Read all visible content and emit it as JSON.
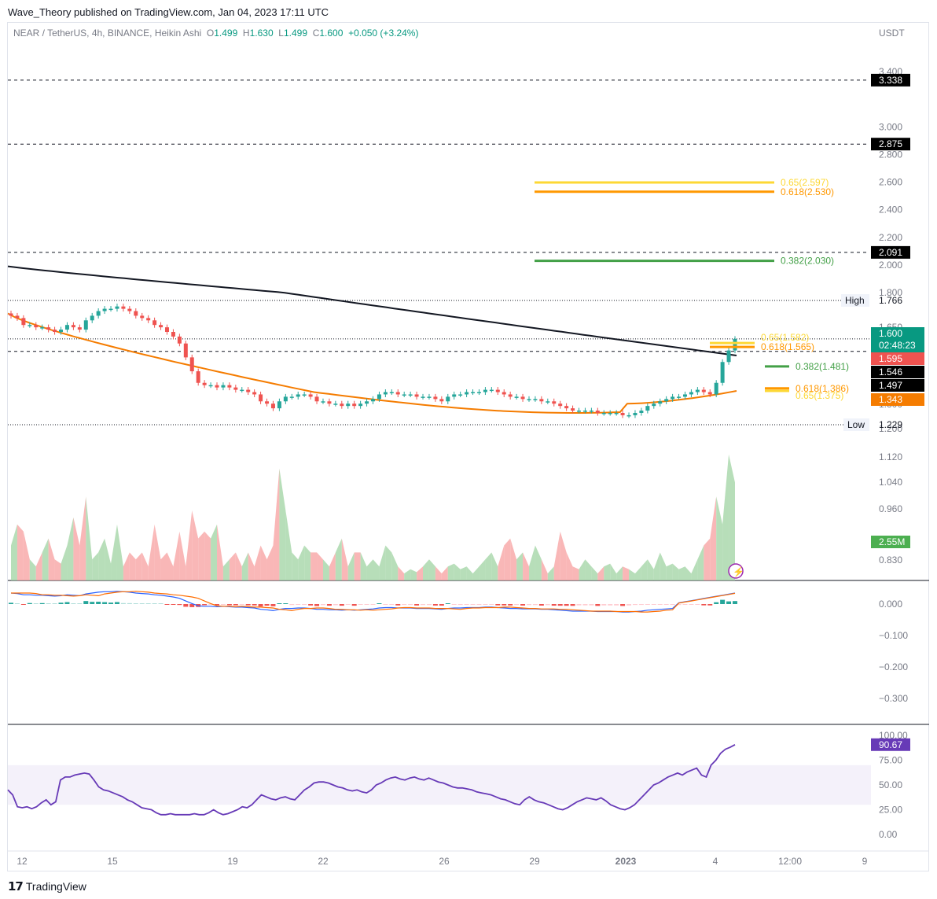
{
  "header": {
    "published": "Wave_Theory published on TradingView.com, Jan 04, 2023 17:11 UTC",
    "symbol": "NEAR / TetherUS, 4h, BINANCE, Heikin Ashi",
    "o_label": "O",
    "o_val": "1.499",
    "h_label": "H",
    "h_val": "1.630",
    "l_label": "L",
    "l_val": "1.499",
    "c_label": "C",
    "c_val": "1.600",
    "change": "+0.050 (+3.24%)",
    "currency": "USDT"
  },
  "footer": {
    "brand": "TradingView"
  },
  "colors": {
    "up": "#26a69a",
    "down": "#ef5350",
    "ema_long": "#131722",
    "ema_short": "#f57c00",
    "fib_yellow": "#fdd835",
    "fib_orange": "#ff9800",
    "fib_green": "#43a047",
    "macd": "#2962ff",
    "signal": "#ff6d00",
    "rsi": "#673ab7"
  },
  "chart_data": [
    {
      "type": "candlestick",
      "title": "NEAR / TetherUS, 4h, BINANCE, Heikin Ashi",
      "yaxis_ticks": [
        "3.400",
        "3.000",
        "2.800",
        "2.600",
        "2.400",
        "2.200",
        "2.000",
        "1.800",
        "1.650",
        "1.300",
        "1.200",
        "1.120",
        "1.040",
        "0.960",
        "0.830"
      ],
      "x_ticks": [
        "12",
        "15",
        "19",
        "22",
        "26",
        "29",
        "2023",
        "4",
        "12:00",
        "9"
      ],
      "price_levels": [
        {
          "label": "3.338",
          "value": 3.338,
          "style": "dashed"
        },
        {
          "label": "2.875",
          "value": 2.875,
          "style": "dashed"
        },
        {
          "label": "2.091",
          "value": 2.091,
          "style": "dashed"
        },
        {
          "label": "1.546",
          "value": 1.546,
          "style": "dashed"
        }
      ],
      "high": {
        "label": "High",
        "value": "1.766"
      },
      "low": {
        "label": "Low",
        "value": "1.229"
      },
      "price_tags": [
        {
          "value": "1.600",
          "sub": "02:48:23",
          "color": "#089981"
        },
        {
          "value": "1.595",
          "color": "#ef5350"
        },
        {
          "value": "1.546",
          "color": "#000000"
        },
        {
          "value": "1.497",
          "color": "#000000"
        },
        {
          "value": "1.343",
          "color": "#f57c00"
        }
      ],
      "fib_levels": [
        {
          "label": "0.65(2.597)",
          "value": 2.597,
          "color": "#fdd835"
        },
        {
          "label": "0.618(2.530)",
          "value": 2.53,
          "color": "#ff9800"
        },
        {
          "label": "0.382(2.030)",
          "value": 2.03,
          "color": "#43a047"
        },
        {
          "label": "0.65(1.582)",
          "value": 1.582,
          "color": "#fdd835"
        },
        {
          "label": "0.618(1.565)",
          "value": 1.565,
          "color": "#ff9800"
        },
        {
          "label": "0.382(1.481)",
          "value": 1.481,
          "color": "#43a047"
        },
        {
          "label": "0.618(1.386)",
          "value": 1.386,
          "color": "#ff9800"
        },
        {
          "label": "0.65(1.375)",
          "value": 1.375,
          "color": "#fdd835"
        }
      ],
      "close_series": [
        1.7,
        1.69,
        1.66,
        1.66,
        1.65,
        1.65,
        1.64,
        1.63,
        1.64,
        1.66,
        1.65,
        1.64,
        1.68,
        1.7,
        1.72,
        1.73,
        1.73,
        1.74,
        1.73,
        1.72,
        1.7,
        1.69,
        1.68,
        1.66,
        1.65,
        1.63,
        1.61,
        1.58,
        1.52,
        1.46,
        1.41,
        1.4,
        1.4,
        1.39,
        1.4,
        1.39,
        1.38,
        1.38,
        1.37,
        1.36,
        1.33,
        1.32,
        1.3,
        1.33,
        1.35,
        1.35,
        1.36,
        1.36,
        1.35,
        1.33,
        1.33,
        1.32,
        1.32,
        1.31,
        1.32,
        1.31,
        1.32,
        1.33,
        1.34,
        1.36,
        1.37,
        1.37,
        1.36,
        1.36,
        1.36,
        1.35,
        1.35,
        1.35,
        1.34,
        1.33,
        1.35,
        1.36,
        1.36,
        1.37,
        1.37,
        1.37,
        1.38,
        1.38,
        1.37,
        1.36,
        1.35,
        1.35,
        1.34,
        1.34,
        1.34,
        1.33,
        1.33,
        1.32,
        1.31,
        1.3,
        1.29,
        1.29,
        1.29,
        1.29,
        1.28,
        1.28,
        1.28,
        1.28,
        1.27,
        1.27,
        1.28,
        1.29,
        1.31,
        1.32,
        1.33,
        1.34,
        1.35,
        1.35,
        1.36,
        1.37,
        1.38,
        1.37,
        1.36,
        1.41,
        1.5,
        1.55,
        1.6
      ],
      "ema_long_range": [
        1.99,
        1.528
      ],
      "ema_short_range": [
        1.71,
        1.375
      ],
      "volume": {
        "label": "2.55M",
        "last": 2.55
      },
      "_volume_profile": [
        0.25,
        0.4,
        0.35,
        0.15,
        0.1,
        0.2,
        0.3,
        0.15,
        0.12,
        0.25,
        0.45,
        0.25,
        0.6,
        0.15,
        0.2,
        0.3,
        0.12,
        0.4,
        0.1,
        0.2,
        0.15,
        0.2,
        0.1,
        0.4,
        0.15,
        0.2,
        0.1,
        0.35,
        0.1,
        0.5,
        0.3,
        0.35,
        0.3,
        0.4,
        0.1,
        0.15,
        0.2,
        0.1,
        0.2,
        0.1,
        0.25,
        0.15,
        0.25,
        0.8,
        0.5,
        0.2,
        0.15,
        0.25,
        0.2,
        0.2,
        0.15,
        0.1,
        0.2,
        0.3,
        0.1,
        0.2,
        0.2,
        0.1,
        0.15,
        0.1,
        0.25,
        0.2,
        0.1,
        0.05,
        0.08,
        0.06,
        0.1,
        0.15,
        0.1,
        0.05,
        0.1,
        0.12,
        0.08,
        0.1,
        0.05,
        0.1,
        0.15,
        0.2,
        0.1,
        0.25,
        0.3,
        0.15,
        0.2,
        0.1,
        0.25,
        0.15,
        0.05,
        0.1,
        0.35,
        0.2,
        0.1,
        0.08,
        0.15,
        0.1,
        0.05,
        0.1,
        0.12,
        0.05,
        0.1,
        0.08,
        0.05,
        0.1,
        0.15,
        0.08,
        0.2,
        0.1,
        0.12,
        0.08,
        0.1,
        0.05,
        0.15,
        0.25,
        0.3,
        0.6,
        0.4,
        0.9,
        0.7
      ]
    },
    {
      "type": "macd",
      "yaxis_ticks": [
        "0.000",
        "−0.100",
        "−0.200",
        "−0.300"
      ],
      "macd_range": [
        0.003,
        -0.075
      ],
      "signal_range": [
        0.002,
        -0.068
      ]
    },
    {
      "type": "rsi",
      "value_label": "90.67",
      "yaxis_ticks": [
        "100.00",
        "75.00",
        "50.00",
        "25.00",
        "0.00"
      ],
      "band": [
        30,
        70
      ],
      "values": [
        45,
        40,
        28,
        27,
        28,
        26,
        28,
        32,
        35,
        30,
        33,
        55,
        58,
        58,
        60,
        61,
        62,
        61,
        55,
        48,
        45,
        44,
        42,
        40,
        38,
        35,
        33,
        30,
        27,
        26,
        25,
        22,
        20,
        20,
        21,
        20,
        20,
        20,
        20,
        21,
        20,
        20,
        22,
        25,
        22,
        20,
        21,
        23,
        25,
        28,
        27,
        30,
        35,
        40,
        38,
        36,
        35,
        37,
        38,
        36,
        35,
        40,
        45,
        48,
        52,
        53,
        53,
        52,
        50,
        48,
        47,
        45,
        44,
        45,
        43,
        42,
        45,
        50,
        52,
        55,
        57,
        58,
        56,
        55,
        57,
        58,
        56,
        55,
        57,
        55,
        53,
        52,
        50,
        48,
        47,
        47,
        46,
        45,
        43,
        42,
        41,
        40,
        38,
        36,
        35,
        33,
        31,
        30,
        35,
        38,
        35,
        33,
        32,
        30,
        28,
        26,
        25,
        27,
        30,
        33,
        35,
        37,
        36,
        35,
        37,
        34,
        30,
        28,
        26,
        25,
        27,
        30,
        35,
        40,
        45,
        50,
        52,
        55,
        58,
        60,
        62,
        60,
        63,
        65,
        67,
        60,
        58,
        70,
        75,
        82,
        86,
        88,
        90.67
      ]
    }
  ]
}
